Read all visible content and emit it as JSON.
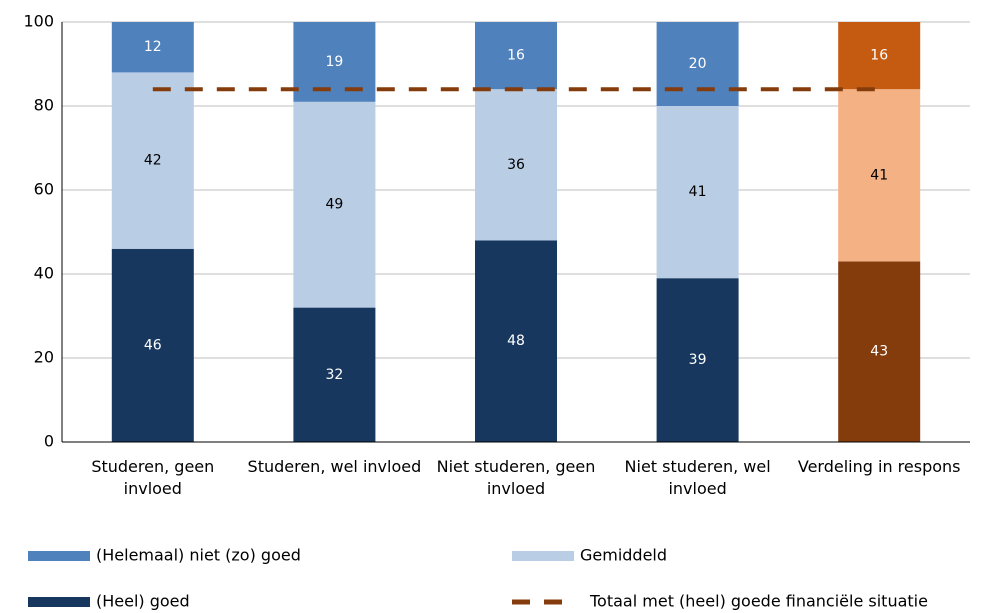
{
  "chart_data": {
    "type": "bar",
    "stacked": true,
    "categories": [
      "Studeren, geen invloed",
      "Studeren, wel invloed",
      "Niet studeren, geen invloed",
      "Niet studeren, wel invloed",
      "Verdeling in respons"
    ],
    "series": [
      {
        "name": "(Helemaal) niet (zo) goed",
        "color": "#4f81bd",
        "colors": [
          "#4f81bd",
          "#4f81bd",
          "#4f81bd",
          "#4f81bd",
          "#c55a11"
        ],
        "values": [
          12,
          19,
          16,
          20,
          16
        ]
      },
      {
        "name": "Gemiddeld",
        "color": "#b9cde5",
        "colors": [
          "#b9cde5",
          "#b9cde5",
          "#b9cde5",
          "#b9cde5",
          "#f4b183"
        ],
        "values": [
          42,
          49,
          36,
          41,
          41
        ]
      },
      {
        "name": "(Heel) goed",
        "color": "#17375e",
        "colors": [
          "#17375e",
          "#17375e",
          "#17375e",
          "#17375e",
          "#843c0c"
        ],
        "values": [
          46,
          32,
          48,
          39,
          43
        ]
      },
      {
        "name": "Totaal met (heel) goede financiële situatie",
        "type": "line",
        "dashed": true,
        "color": "#843c0c",
        "values": [
          84,
          84,
          84,
          84,
          84
        ]
      }
    ],
    "ylim": [
      0,
      100
    ],
    "yticks": [
      0,
      20,
      40,
      60,
      80,
      100
    ],
    "grid": true
  }
}
